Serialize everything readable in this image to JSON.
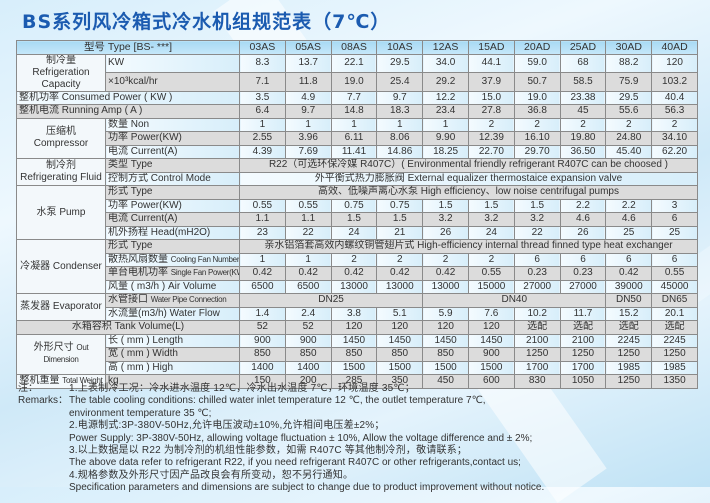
{
  "title": "BS系列风冷箱式冷水机组规范表（7℃）",
  "header": {
    "label": "型号 Type [BS- ***]",
    "models": [
      "03AS",
      "05AS",
      "08AS",
      "10AS",
      "12AS",
      "15AD",
      "20AD",
      "25AD",
      "30AD",
      "40AD"
    ]
  },
  "groups": [
    {
      "name": "制冷量 Refrigeration Capacity",
      "rows": [
        {
          "label": "KW",
          "values": [
            "8.3",
            "13.7",
            "22.1",
            "29.5",
            "34.0",
            "44.1",
            "59.0",
            "68",
            "88.2",
            "120"
          ]
        },
        {
          "label": "×10³kcal/hr",
          "values": [
            "7.1",
            "11.8",
            "19.0",
            "25.4",
            "29.2",
            "37.9",
            "50.7",
            "58.5",
            "75.9",
            "103.2"
          ]
        }
      ]
    },
    {
      "name": "",
      "rows": [
        {
          "label": "整机功率  Consumed Power ( KW )",
          "full": true,
          "values": [
            "3.5",
            "4.9",
            "7.7",
            "9.7",
            "12.2",
            "15.0",
            "19.0",
            "23.38",
            "29.5",
            "40.4"
          ]
        }
      ]
    },
    {
      "name": "",
      "rows": [
        {
          "label": "整机电流  Running Amp ( A )",
          "full": true,
          "values": [
            "6.4",
            "9.7",
            "14.8",
            "18.3",
            "23.4",
            "27.8",
            "36.8",
            "45",
            "55.6",
            "56.3"
          ]
        }
      ]
    },
    {
      "name": "压缩机 Compressor",
      "rows": [
        {
          "label": "数量 Non",
          "values": [
            "1",
            "1",
            "1",
            "1",
            "1",
            "2",
            "2",
            "2",
            "2",
            "2"
          ]
        },
        {
          "label": "功率 Power(KW)",
          "values": [
            "2.55",
            "3.96",
            "6.11",
            "8.06",
            "9.90",
            "12.39",
            "16.10",
            "19.80",
            "24.80",
            "34.10"
          ]
        },
        {
          "label": "电流 Current(A)",
          "values": [
            "4.39",
            "7.69",
            "11.41",
            "14.86",
            "18.25",
            "22.70",
            "29.70",
            "36.50",
            "45.40",
            "62.20"
          ]
        }
      ]
    },
    {
      "name": "制冷剂 Refrigerating Fluid",
      "rows": [
        {
          "label": "类型 Type",
          "spans": [
            {
              "text": "R22（可选环保冷媒 R407C）( Environmental friendly refrigerant R407C can be choosed )",
              "models": 10
            }
          ]
        },
        {
          "label": "控制方式 Control Mode",
          "spans": [
            {
              "text": "外平衡式热力膨胀阀 External equalizer thermostaice expansion valve",
              "models": 10
            }
          ]
        }
      ]
    },
    {
      "name": "水泵 Pump",
      "rows": [
        {
          "label": "形式 Type",
          "spans": [
            {
              "text": "高效、低噪声离心水泵 High efficiency、low noise centrifugal pumps",
              "models": 10
            }
          ]
        },
        {
          "label": "功率 Power(KW)",
          "values": [
            "0.55",
            "0.55",
            "0.75",
            "0.75",
            "1.5",
            "1.5",
            "1.5",
            "2.2",
            "2.2",
            "3"
          ]
        },
        {
          "label": "电流 Current(A)",
          "values": [
            "1.1",
            "1.1",
            "1.5",
            "1.5",
            "3.2",
            "3.2",
            "3.2",
            "4.6",
            "4.6",
            "6"
          ]
        },
        {
          "label": "机外扬程 Head(mH2O)",
          "values": [
            "23",
            "22",
            "24",
            "21",
            "26",
            "24",
            "22",
            "26",
            "25",
            "25"
          ]
        }
      ]
    },
    {
      "name": "冷凝器 Condenser",
      "rows": [
        {
          "label": "形式 Type",
          "spans": [
            {
              "text": "亲水铝箔套高效内螺纹铜管翅片式 High-efficiency internal thread finned type heat exchanger",
              "models": 10
            }
          ]
        },
        {
          "label": "散热风扇数量",
          "label_small": "Cooling Fan Number",
          "values": [
            "1",
            "1",
            "2",
            "2",
            "2",
            "2",
            "6",
            "6",
            "6",
            "6"
          ]
        },
        {
          "label": "单台电机功率",
          "label_small": "Single Fan Power(KW)",
          "values": [
            "0.42",
            "0.42",
            "0.42",
            "0.42",
            "0.42",
            "0.55",
            "0.23",
            "0.23",
            "0.42",
            "0.55"
          ]
        },
        {
          "label": "风量 ( m3/h ) Air Volume",
          "values": [
            "6500",
            "6500",
            "13000",
            "13000",
            "13000",
            "15000",
            "27000",
            "27000",
            "39000",
            "45000"
          ]
        }
      ]
    },
    {
      "name": "蒸发器 Evaporator",
      "rows": [
        {
          "label": "水管接口",
          "label_small": "Water Pipe Connection",
          "spans": [
            {
              "text": "DN25",
              "models": 4
            },
            {
              "text": "DN40",
              "models": 4
            },
            {
              "text": "DN50",
              "models": 1
            },
            {
              "text": "DN65",
              "models": 1
            }
          ]
        },
        {
          "label": "水流量(m3/h) Water Flow",
          "values": [
            "1.4",
            "2.4",
            "3.8",
            "5.1",
            "5.9",
            "7.6",
            "10.2",
            "11.7",
            "15.2",
            "20.1"
          ]
        }
      ]
    },
    {
      "name": "",
      "rows": [
        {
          "label": "水箱容积 Tank Volume(L)",
          "full": true,
          "center": true,
          "values": [
            "52",
            "52",
            "120",
            "120",
            "120",
            "120",
            "选配",
            "选配",
            "选配",
            "选配"
          ]
        }
      ]
    },
    {
      "name": "外形尺寸",
      "name_small": "Out Dimension",
      "rows": [
        {
          "label": "长 ( mm ) Length",
          "values": [
            "900",
            "900",
            "1450",
            "1450",
            "1450",
            "1450",
            "2100",
            "2100",
            "2245",
            "2245"
          ]
        },
        {
          "label": "宽 ( mm ) Width",
          "values": [
            "850",
            "850",
            "850",
            "850",
            "850",
            "900",
            "1250",
            "1250",
            "1250",
            "1250"
          ]
        },
        {
          "label": "高 ( mm ) High",
          "values": [
            "1400",
            "1400",
            "1500",
            "1500",
            "1500",
            "1500",
            "1700",
            "1700",
            "1985",
            "1985"
          ]
        }
      ]
    },
    {
      "name": "整机重量",
      "name_small": "Total Weight",
      "rows": [
        {
          "label": "kg",
          "values": [
            "150",
            "200",
            "285",
            "350",
            "450",
            "600",
            "830",
            "1050",
            "1250",
            "1350"
          ]
        }
      ]
    }
  ],
  "notes": {
    "label_cn": "注：",
    "label_en": "Remarks：",
    "lines": [
      "1.上表制冷工况：冷水进水温度 12℃，冷水出水温度 7℃，环境温度 35℃；",
      "The table cooling conditions: chilled water inlet temperature 12 ℃, the outlet temperature 7℃,",
      "environment temperature 35 ℃;",
      "2.电源制式:3P-380V-50Hz,允许电压波动±10%,允许相间电压差±2%；",
      "Power Supply: 3P-380V-50Hz, allowing voltage fluctuation ± 10%, Allow the voltage difference and ± 2%;",
      "3.以上数据是以 R22 为制冷剂的机组性能参数，如需 R407C 等其他制冷剂，敬请联系；",
      "The above data refer to refrigerant R22, if you need refrigerant R407C or other refrigerants,contact us;",
      "4.规格参数及外形尺寸因产品改良会有所变动，恕不另行通知。",
      "Specification parameters and dimensions are subject to change due to product improvement without notice."
    ]
  }
}
